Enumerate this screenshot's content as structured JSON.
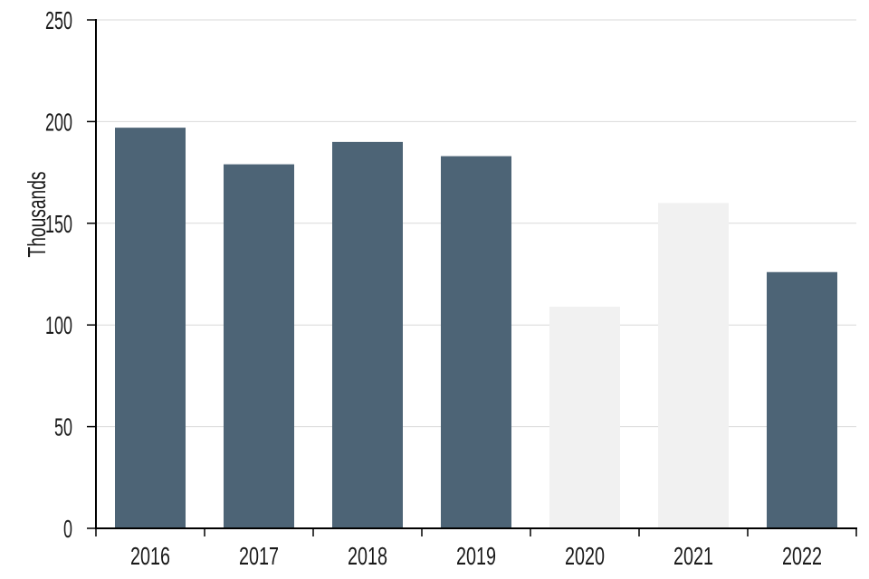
{
  "chart_data": {
    "type": "bar",
    "title": "",
    "xlabel": "",
    "ylabel": "Thousands",
    "categories": [
      "2016",
      "2017",
      "2018",
      "2019",
      "2020",
      "2021",
      "2022"
    ],
    "values": [
      197,
      179,
      190,
      183,
      109,
      160,
      126
    ],
    "muted_categories": [
      "2020",
      "2021"
    ],
    "ylim": [
      0,
      250
    ],
    "yticks": [
      0,
      50,
      100,
      150,
      200,
      250
    ],
    "grid": true,
    "legend": "none",
    "colors": {
      "bar_primary": "#4D6476",
      "bar_muted": "#F1F1F1",
      "gridline": "#D9D9D9",
      "axis": "#000000",
      "text": "#1A1A1A",
      "background": "#FFFFFF"
    }
  }
}
